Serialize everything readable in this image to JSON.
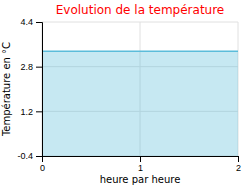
{
  "chart_data": {
    "type": "area",
    "title": "Evolution de la température",
    "xlabel": "heure par heure",
    "ylabel": "Température en °C",
    "x": [
      0,
      2
    ],
    "values": [
      3.35,
      3.35
    ],
    "color": "#5bbcda",
    "xlim": [
      0,
      2
    ],
    "ylim": [
      -0.4,
      4.4
    ],
    "xticks": [
      0,
      1,
      2
    ],
    "yticks": [
      -0.4,
      1.2,
      2.8,
      4.4
    ],
    "grid": true
  }
}
